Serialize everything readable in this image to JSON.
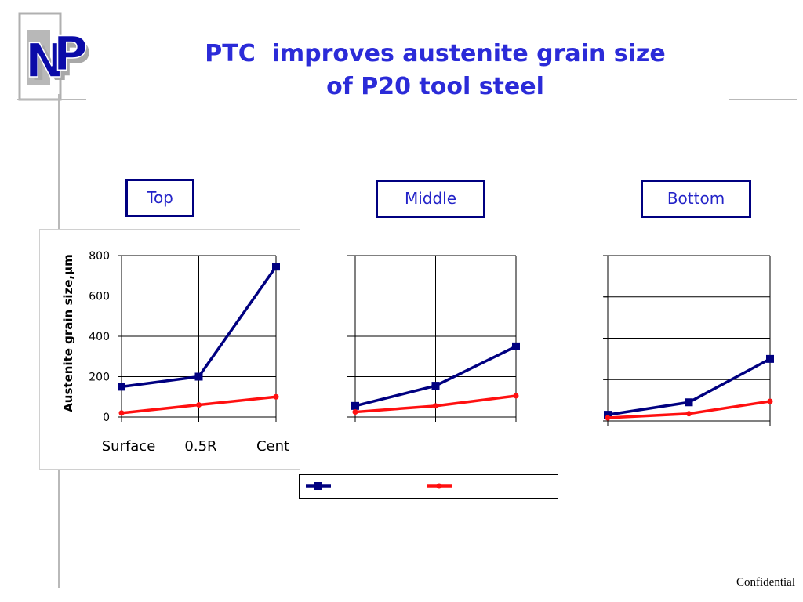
{
  "logo": {
    "text": "NP",
    "primary_color": "#0a0aa8",
    "shadow_color": "#a8a8a8"
  },
  "title": {
    "line1": "PTC  improves austenite grain size",
    "line2": "of P20 tool steel",
    "color": "#2b2bd8"
  },
  "panels": [
    {
      "label": "Top"
    },
    {
      "label": "Middle"
    },
    {
      "label": "Bottom"
    }
  ],
  "footer": {
    "text": "Confidential"
  },
  "chart_data": [
    {
      "type": "line",
      "panel": "Top",
      "categories": [
        "Surface",
        "0.5R",
        "Cent"
      ],
      "ylabel": "Austenite grain size,μm",
      "ylim": [
        0,
        800
      ],
      "yticks": [
        0,
        200,
        400,
        600,
        800
      ],
      "grid": true,
      "series": [
        {
          "values": [
            150,
            200,
            745
          ],
          "color": "#000080",
          "marker": "square"
        },
        {
          "values": [
            20,
            60,
            100
          ],
          "color": "#ff1010",
          "marker": "circle"
        }
      ]
    },
    {
      "type": "line",
      "panel": "Middle",
      "categories": [
        "",
        "",
        ""
      ],
      "ylim": [
        0,
        800
      ],
      "grid": true,
      "series": [
        {
          "values": [
            55,
            155,
            350
          ],
          "color": "#000080",
          "marker": "square"
        },
        {
          "values": [
            25,
            55,
            105
          ],
          "color": "#ff1010",
          "marker": "circle"
        }
      ]
    },
    {
      "type": "line",
      "panel": "Bottom",
      "categories": [
        "",
        "",
        ""
      ],
      "ylim": [
        0,
        800
      ],
      "grid": true,
      "series": [
        {
          "values": [
            30,
            90,
            300
          ],
          "color": "#000080",
          "marker": "square"
        },
        {
          "values": [
            15,
            35,
            95
          ],
          "color": "#ff1010",
          "marker": "circle"
        }
      ]
    }
  ],
  "legend": {
    "entries": [
      {
        "label": "",
        "color": "#000080",
        "marker": "square"
      },
      {
        "label": "",
        "color": "#ff1010",
        "marker": "circle"
      }
    ]
  }
}
